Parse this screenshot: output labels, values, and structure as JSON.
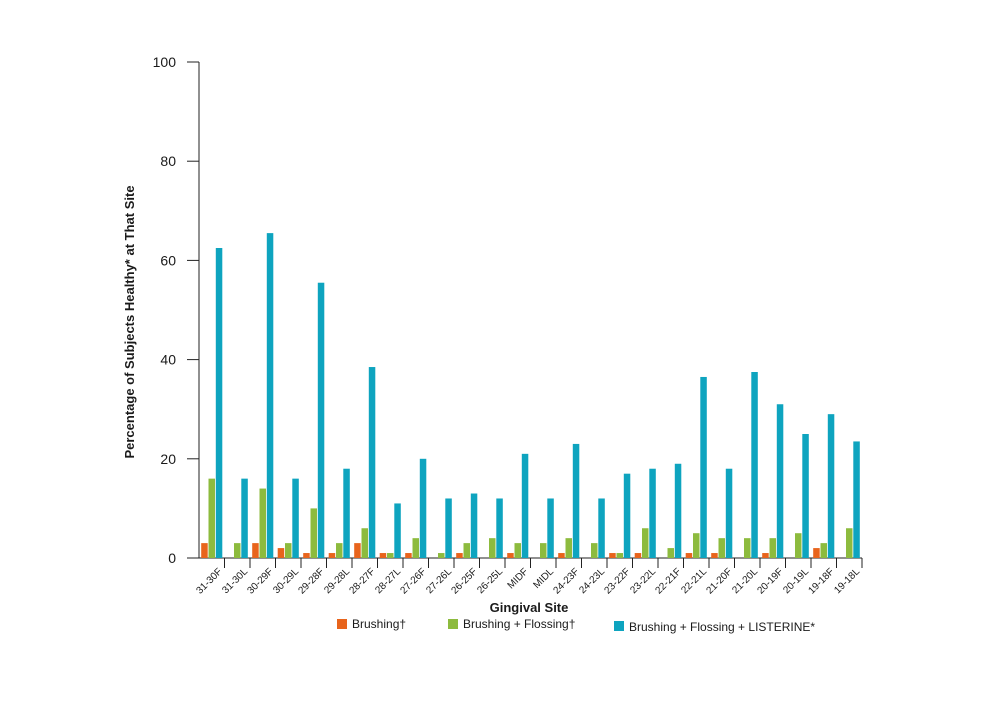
{
  "chart_data": {
    "type": "bar",
    "title": "",
    "xlabel": "Gingival Site",
    "ylabel": "Percentage of Subjects Healthy* at That Site",
    "ylim": [
      0,
      100
    ],
    "yticks": [
      "0",
      "20",
      "40",
      "60",
      "80",
      "100"
    ],
    "ytick_values": [
      0,
      20,
      40,
      60,
      80,
      100
    ],
    "grid": false,
    "legend_position": "bottom-center",
    "categories": [
      "31-30F",
      "31-30L",
      "30-29F",
      "30-29L",
      "29-28F",
      "29-28L",
      "28-27F",
      "28-27L",
      "27-26F",
      "27-26L",
      "26-25F",
      "26-25L",
      "MIDF",
      "MIDL",
      "24-23F",
      "24-23L",
      "23-22F",
      "23-22L",
      "22-21F",
      "22-21L",
      "21-20F",
      "21-20L",
      "20-19F",
      "20-19L",
      "19-18F",
      "19-18L"
    ],
    "series": [
      {
        "name": "Brushing†",
        "color": "#e8641c",
        "values": [
          3,
          0,
          3,
          2,
          1,
          1,
          3,
          1,
          1,
          0,
          1,
          0,
          1,
          0,
          1,
          0,
          1,
          1,
          0,
          1,
          1,
          0,
          1,
          0,
          2,
          0
        ]
      },
      {
        "name": "Brushing + Flossing†",
        "color": "#8dbb3e",
        "values": [
          16,
          3,
          14,
          3,
          10,
          3,
          6,
          1,
          4,
          1,
          3,
          4,
          3,
          3,
          4,
          3,
          1,
          6,
          2,
          5,
          4,
          4,
          4,
          5,
          3,
          6
        ]
      },
      {
        "name": "Brushing + Flossing + LISTERINE*",
        "color": "#0ea4bf",
        "values": [
          62.5,
          16,
          65.5,
          16,
          55.5,
          18,
          38.5,
          11,
          20,
          12,
          13,
          12,
          21,
          12,
          23,
          12,
          17,
          18,
          19,
          36.5,
          18,
          37.5,
          31,
          25,
          29,
          23.5
        ]
      }
    ]
  }
}
